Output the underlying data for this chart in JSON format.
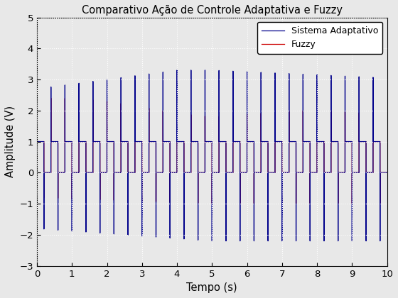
{
  "title": "Comparativo Ação de Controle Adaptativa e Fuzzy",
  "xlabel": "Tempo (s)",
  "ylabel": "Amplitude (V)",
  "xlim": [
    0,
    10
  ],
  "ylim": [
    -3,
    5
  ],
  "yticks": [
    -3,
    -2,
    -1,
    0,
    1,
    2,
    3,
    4,
    5
  ],
  "xticks": [
    0,
    1,
    2,
    3,
    4,
    5,
    6,
    7,
    8,
    9,
    10
  ],
  "legend_labels": [
    "Sistema Adaptativo",
    "Fuzzy"
  ],
  "adaptive_color": "#00008B",
  "fuzzy_color": "#CC0000",
  "background_color": "#e8e8e8",
  "grid_color": "#ffffff",
  "period": 0.4,
  "total_time": 10.0,
  "dt": 0.0005
}
